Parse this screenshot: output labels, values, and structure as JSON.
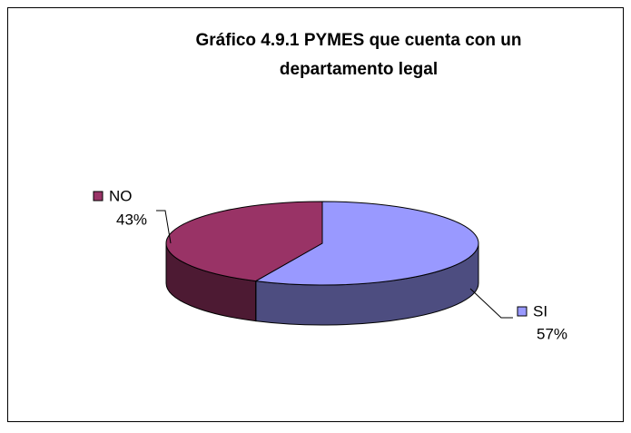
{
  "chart_data": {
    "type": "pie3d",
    "title": "Gráfico 4.9.1 PYMES que cuenta con un departamento legal",
    "categories": [
      "SI",
      "NO"
    ],
    "values": [
      57,
      43
    ],
    "value_labels": [
      "57%",
      "43%"
    ],
    "colors": [
      "#9999ff",
      "#993366"
    ]
  }
}
